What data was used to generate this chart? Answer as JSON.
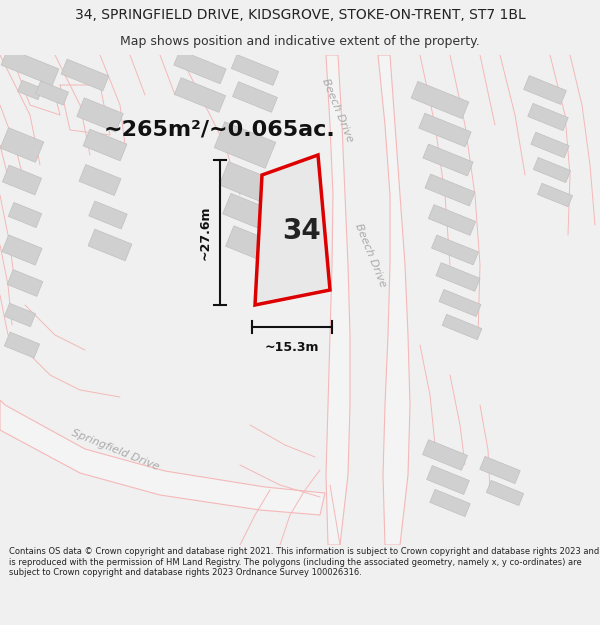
{
  "title_line1": "34, SPRINGFIELD DRIVE, KIDSGROVE, STOKE-ON-TRENT, ST7 1BL",
  "title_line2": "Map shows position and indicative extent of the property.",
  "footer_text": "Contains OS data © Crown copyright and database right 2021. This information is subject to Crown copyright and database rights 2023 and is reproduced with the permission of HM Land Registry. The polygons (including the associated geometry, namely x, y co-ordinates) are subject to Crown copyright and database rights 2023 Ordnance Survey 100026316.",
  "area_text": "~265m²/~0.065ac.",
  "width_text": "~15.3m",
  "height_text": "~27.6m",
  "number_text": "34",
  "property_fill": "#e8e8e8",
  "property_edge": "#dd0000",
  "road_color": "#f5b8b8",
  "road_fill": "#f8f8f8",
  "building_fill": "#d0d0d0",
  "building_edge": "#c0c0c0",
  "road_label_color": "#aaaaaa",
  "dim_color": "#111111",
  "map_bg": "#ffffff",
  "title_bg": "#ffffff",
  "footer_bg": "#f0f0f0",
  "title_fontsize": 10,
  "subtitle_fontsize": 9,
  "area_fontsize": 16,
  "num_fontsize": 20,
  "dim_fontsize": 9,
  "road_label_fontsize": 8
}
